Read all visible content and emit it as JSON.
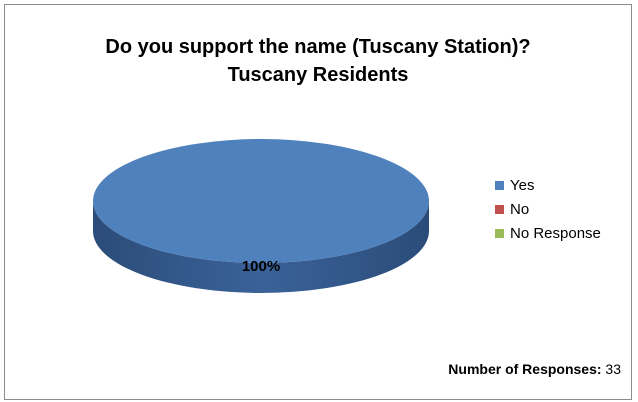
{
  "chart_data": {
    "type": "pie",
    "style": "3d",
    "title_line1": "Do you support the name (Tuscany Station)?",
    "title_line2": "Tuscany Residents",
    "categories": [
      "Yes",
      "No",
      "No Response"
    ],
    "values": [
      100,
      0,
      0
    ],
    "colors": [
      "#4f81bd",
      "#c0504d",
      "#9bbb59"
    ],
    "data_labels": [
      "100%"
    ],
    "legend_position": "right"
  },
  "footer": {
    "label": "Number of Responses:",
    "value": "33"
  }
}
